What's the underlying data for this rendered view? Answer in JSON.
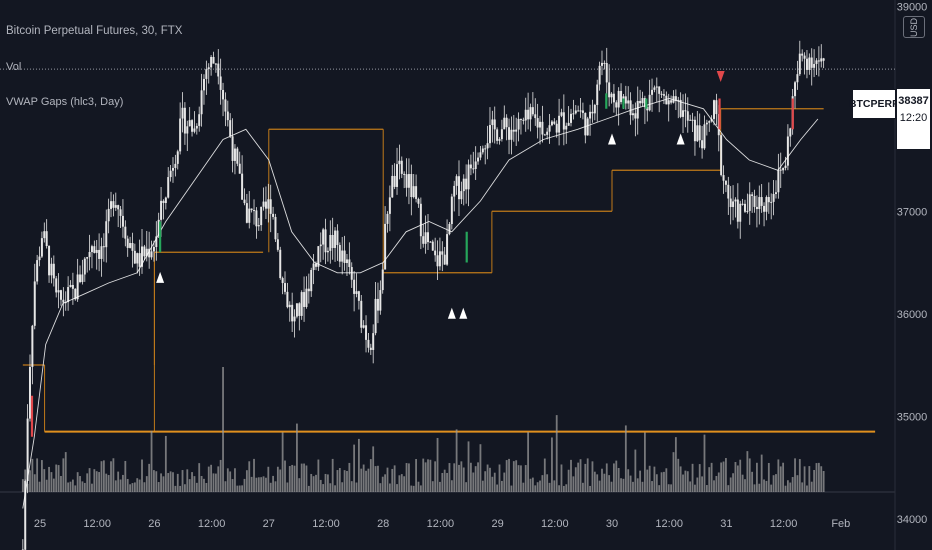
{
  "legend": {
    "title": "Bitcoin Perpetual Futures, 30, FTX",
    "vol": "Vol",
    "indicator": "VWAP Gaps (hlc3, Day)"
  },
  "currency_button": "USD",
  "last_price": {
    "symbol": "BTCPERP",
    "price": "38387",
    "countdown": "12:20"
  },
  "colors": {
    "background": "#131722",
    "candle": "#e6e6e6",
    "volume": "#9a9a9a",
    "vwap": "#ffffff",
    "session_vwap": "#c17a1a",
    "gap_fill_up": "#26a65b",
    "gap_fill_down": "#e0484b",
    "arrow": "#ffffff"
  },
  "chart_data": {
    "type": "candlestick",
    "title": "Bitcoin Perpetual Futures, 30, FTX",
    "interval": "30",
    "exchange": "FTX",
    "ylim": [
      33400,
      39300
    ],
    "y_ticks": [
      34000,
      35000,
      36000,
      37000,
      38000,
      39000
    ],
    "x_ticks": [
      "25",
      "12:00",
      "26",
      "12:00",
      "27",
      "12:00",
      "28",
      "12:00",
      "29",
      "12:00",
      "30",
      "12:00",
      "31",
      "12:00",
      "Feb"
    ],
    "last_price": 38387,
    "price_path": [
      {
        "d": 24.85,
        "p": 33700
      },
      {
        "d": 24.9,
        "p": 35300
      },
      {
        "d": 24.95,
        "p": 36300
      },
      {
        "d": 25.02,
        "p": 36800
      },
      {
        "d": 25.15,
        "p": 36100
      },
      {
        "d": 25.3,
        "p": 36200
      },
      {
        "d": 25.45,
        "p": 36700
      },
      {
        "d": 25.55,
        "p": 36600
      },
      {
        "d": 25.65,
        "p": 37200
      },
      {
        "d": 25.75,
        "p": 36800
      },
      {
        "d": 25.85,
        "p": 36500
      },
      {
        "d": 26.0,
        "p": 36700
      },
      {
        "d": 26.12,
        "p": 37300
      },
      {
        "d": 26.25,
        "p": 37900
      },
      {
        "d": 26.35,
        "p": 37800
      },
      {
        "d": 26.45,
        "p": 38400
      },
      {
        "d": 26.55,
        "p": 38500
      },
      {
        "d": 26.62,
        "p": 38000
      },
      {
        "d": 26.72,
        "p": 37400
      },
      {
        "d": 26.8,
        "p": 37000
      },
      {
        "d": 26.92,
        "p": 36900
      },
      {
        "d": 27.02,
        "p": 37100
      },
      {
        "d": 27.12,
        "p": 36300
      },
      {
        "d": 27.22,
        "p": 35900
      },
      {
        "d": 27.32,
        "p": 36200
      },
      {
        "d": 27.45,
        "p": 36700
      },
      {
        "d": 27.58,
        "p": 36700
      },
      {
        "d": 27.7,
        "p": 36400
      },
      {
        "d": 27.8,
        "p": 36000
      },
      {
        "d": 27.88,
        "p": 35700
      },
      {
        "d": 27.98,
        "p": 36300
      },
      {
        "d": 28.05,
        "p": 37200
      },
      {
        "d": 28.15,
        "p": 37400
      },
      {
        "d": 28.25,
        "p": 37200
      },
      {
        "d": 28.35,
        "p": 36800
      },
      {
        "d": 28.45,
        "p": 36500
      },
      {
        "d": 28.55,
        "p": 36600
      },
      {
        "d": 28.62,
        "p": 37200
      },
      {
        "d": 28.72,
        "p": 37300
      },
      {
        "d": 28.85,
        "p": 37700
      },
      {
        "d": 29.0,
        "p": 37800
      },
      {
        "d": 29.15,
        "p": 37800
      },
      {
        "d": 29.3,
        "p": 37900
      },
      {
        "d": 29.45,
        "p": 37800
      },
      {
        "d": 29.58,
        "p": 37900
      },
      {
        "d": 29.7,
        "p": 38000
      },
      {
        "d": 29.8,
        "p": 37800
      },
      {
        "d": 29.9,
        "p": 38500
      },
      {
        "d": 30.0,
        "p": 38100
      },
      {
        "d": 30.1,
        "p": 38100
      },
      {
        "d": 30.2,
        "p": 38000
      },
      {
        "d": 30.3,
        "p": 38100
      },
      {
        "d": 30.4,
        "p": 38200
      },
      {
        "d": 30.5,
        "p": 38000
      },
      {
        "d": 30.6,
        "p": 38000
      },
      {
        "d": 30.7,
        "p": 37800
      },
      {
        "d": 30.8,
        "p": 37700
      },
      {
        "d": 30.9,
        "p": 38000
      },
      {
        "d": 30.96,
        "p": 37400
      },
      {
        "d": 31.05,
        "p": 37000
      },
      {
        "d": 31.15,
        "p": 37000
      },
      {
        "d": 31.25,
        "p": 37100
      },
      {
        "d": 31.35,
        "p": 37100
      },
      {
        "d": 31.45,
        "p": 37300
      },
      {
        "d": 31.52,
        "p": 37500
      },
      {
        "d": 31.58,
        "p": 38100
      },
      {
        "d": 31.65,
        "p": 38500
      },
      {
        "d": 31.75,
        "p": 38500
      },
      {
        "d": 31.85,
        "p": 38400
      }
    ],
    "vwap_path": [
      {
        "d": 24.85,
        "p": 34100
      },
      {
        "d": 24.95,
        "p": 34800
      },
      {
        "d": 25.05,
        "p": 35700
      },
      {
        "d": 25.2,
        "p": 36100
      },
      {
        "d": 25.4,
        "p": 36200
      },
      {
        "d": 25.6,
        "p": 36300
      },
      {
        "d": 25.85,
        "p": 36400
      },
      {
        "d": 26.1,
        "p": 36900
      },
      {
        "d": 26.35,
        "p": 37300
      },
      {
        "d": 26.6,
        "p": 37700
      },
      {
        "d": 26.8,
        "p": 37800
      },
      {
        "d": 27.0,
        "p": 37500
      },
      {
        "d": 27.2,
        "p": 36800
      },
      {
        "d": 27.4,
        "p": 36500
      },
      {
        "d": 27.6,
        "p": 36400
      },
      {
        "d": 27.8,
        "p": 36400
      },
      {
        "d": 28.0,
        "p": 36500
      },
      {
        "d": 28.2,
        "p": 36800
      },
      {
        "d": 28.4,
        "p": 36900
      },
      {
        "d": 28.6,
        "p": 36800
      },
      {
        "d": 28.85,
        "p": 37100
      },
      {
        "d": 29.1,
        "p": 37500
      },
      {
        "d": 29.4,
        "p": 37700
      },
      {
        "d": 29.7,
        "p": 37800
      },
      {
        "d": 29.95,
        "p": 37900
      },
      {
        "d": 30.2,
        "p": 38000
      },
      {
        "d": 30.5,
        "p": 38100
      },
      {
        "d": 30.8,
        "p": 38000
      },
      {
        "d": 31.0,
        "p": 37700
      },
      {
        "d": 31.2,
        "p": 37500
      },
      {
        "d": 31.45,
        "p": 37400
      },
      {
        "d": 31.65,
        "p": 37700
      },
      {
        "d": 31.8,
        "p": 37900
      }
    ],
    "session_vwap_levels": [
      {
        "from": 24.85,
        "to": 25.04,
        "p": 35500
      },
      {
        "from": 26.0,
        "to": 26.95,
        "p": 36600
      },
      {
        "from": 27.0,
        "to": 28.0,
        "p": 37800
      },
      {
        "from": 28.0,
        "to": 28.95,
        "p": 36400
      },
      {
        "from": 28.95,
        "to": 30.0,
        "p": 37000
      },
      {
        "from": 30.0,
        "to": 30.95,
        "p": 37400
      },
      {
        "from": 30.95,
        "to": 31.85,
        "p": 38000
      }
    ],
    "horizontal_levels": [
      {
        "p": 34850,
        "color": "#e0901e",
        "from": 25.04,
        "to": 32.3
      }
    ],
    "gap_fill_markers": [
      {
        "d": 24.93,
        "p1": 34800,
        "p2": 35200,
        "dir": "down"
      },
      {
        "d": 26.05,
        "p1": 36600,
        "p2": 36900,
        "dir": "up"
      },
      {
        "d": 28.73,
        "p1": 36500,
        "p2": 36800,
        "dir": "up"
      },
      {
        "d": 29.95,
        "p1": 38000,
        "p2": 38150,
        "dir": "up"
      },
      {
        "d": 30.1,
        "p1": 38000,
        "p2": 38100,
        "dir": "up"
      },
      {
        "d": 30.3,
        "p1": 38000,
        "p2": 38100,
        "dir": "up"
      },
      {
        "d": 30.94,
        "p1": 37800,
        "p2": 38100,
        "dir": "down"
      },
      {
        "d": 31.58,
        "p1": 37800,
        "p2": 38100,
        "dir": "down"
      }
    ],
    "arrows": [
      {
        "d": 26.05,
        "p": 36350,
        "dir": "up"
      },
      {
        "d": 28.6,
        "p": 36000,
        "dir": "up"
      },
      {
        "d": 28.7,
        "p": 36000,
        "dir": "up"
      },
      {
        "d": 30.0,
        "p": 37700,
        "dir": "up"
      },
      {
        "d": 30.6,
        "p": 37700,
        "dir": "up"
      },
      {
        "d": 30.95,
        "p": 38320,
        "dir": "down"
      }
    ]
  }
}
